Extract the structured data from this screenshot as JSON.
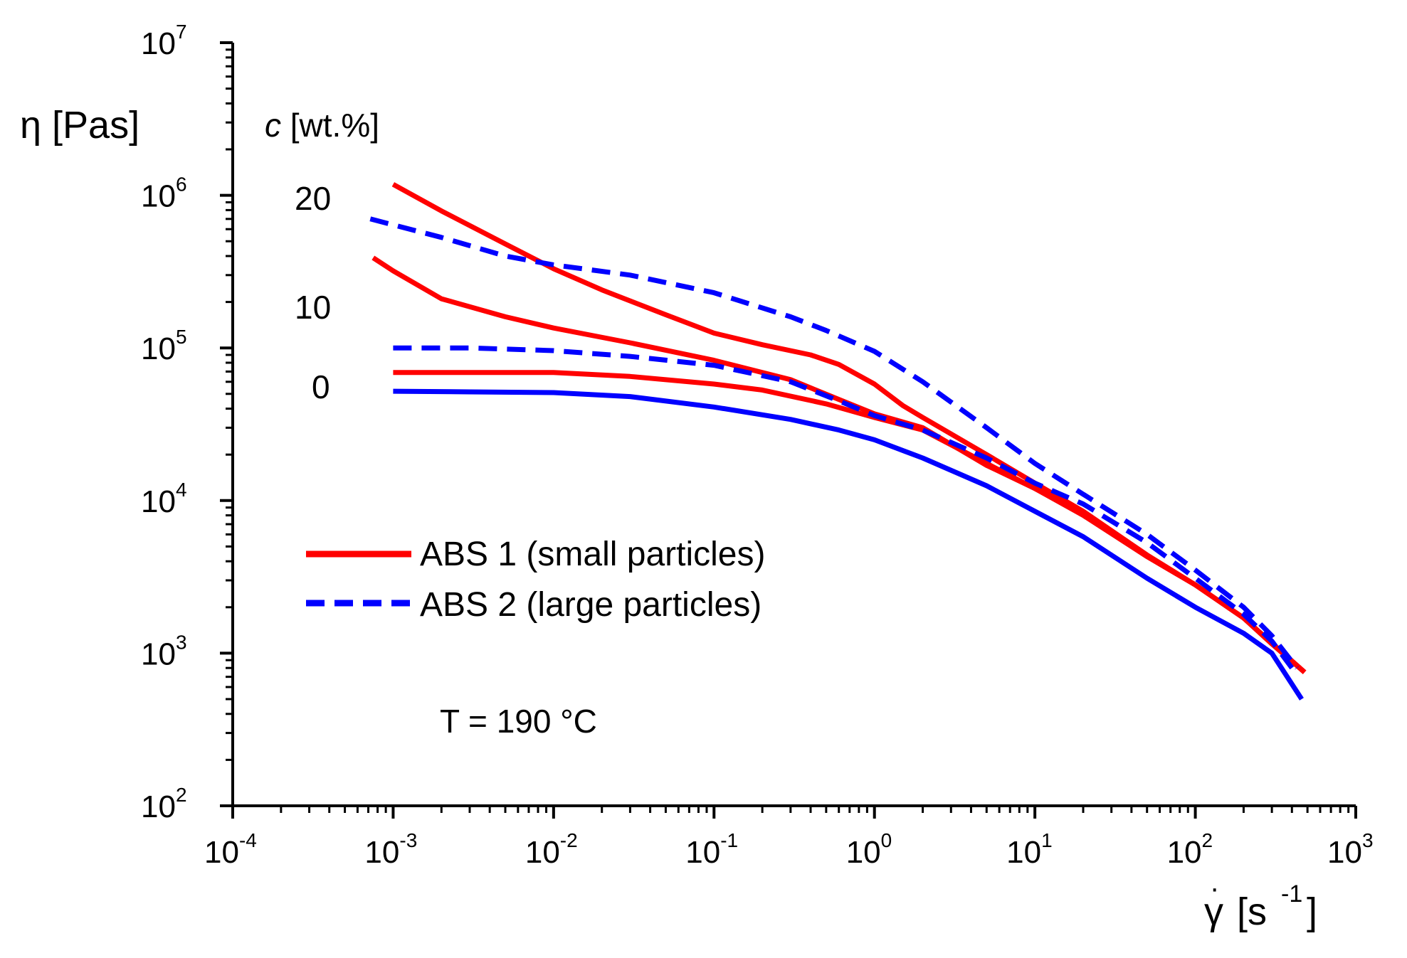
{
  "chart_data": {
    "type": "line",
    "title": "",
    "xlabel": {
      "symbol": "γ",
      "unit_open": "[s",
      "unit_exp": "-1",
      "unit_close": "]"
    },
    "ylabel": "η [Pas]",
    "xscale": "log",
    "yscale": "log",
    "xlim": [
      0.0001,
      1000
    ],
    "ylim": [
      100,
      10000000
    ],
    "xticks": [
      {
        "base": "10",
        "exp": "-4",
        "value": 0.0001
      },
      {
        "base": "10",
        "exp": "-3",
        "value": 0.001
      },
      {
        "base": "10",
        "exp": "-2",
        "value": 0.01
      },
      {
        "base": "10",
        "exp": "-1",
        "value": 0.1
      },
      {
        "base": "10",
        "exp": "0",
        "value": 1
      },
      {
        "base": "10",
        "exp": "1",
        "value": 10
      },
      {
        "base": "10",
        "exp": "2",
        "value": 100
      },
      {
        "base": "10",
        "exp": "3",
        "value": 1000
      }
    ],
    "yticks": [
      {
        "base": "10",
        "exp": "2",
        "value": 100
      },
      {
        "base": "10",
        "exp": "3",
        "value": 1000
      },
      {
        "base": "10",
        "exp": "4",
        "value": 10000
      },
      {
        "base": "10",
        "exp": "5",
        "value": 100000
      },
      {
        "base": "10",
        "exp": "6",
        "value": 1000000
      },
      {
        "base": "10",
        "exp": "7",
        "value": 10000000
      }
    ],
    "grid": false,
    "legend": {
      "placement": "center-left",
      "entries": [
        {
          "label": "ABS 1 (small particles)",
          "color": "#ff0000",
          "dash": "solid"
        },
        {
          "label": "ABS 2 (large particles)",
          "color": "#0000ff",
          "dash": "dashed"
        }
      ]
    },
    "annotations": {
      "conc_title_italic": "c",
      "conc_title_rest": " [wt.%]",
      "conc_labels": [
        "20",
        "10",
        "0"
      ],
      "temperature": "T = 190 °C"
    },
    "series": [
      {
        "group": "ABS 1 (small particles)",
        "c": "0",
        "color": "#0000ff",
        "dash": "solid",
        "points": [
          [
            0.001,
            52000
          ],
          [
            0.003,
            51500
          ],
          [
            0.01,
            51000
          ],
          [
            0.03,
            48000
          ],
          [
            0.1,
            41000
          ],
          [
            0.3,
            34000
          ],
          [
            0.6,
            29000
          ],
          [
            1,
            25000
          ],
          [
            2,
            19000
          ],
          [
            5,
            12500
          ],
          [
            10,
            8500
          ],
          [
            20,
            5800
          ],
          [
            50,
            3100
          ],
          [
            100,
            2000
          ],
          [
            200,
            1350
          ],
          [
            300,
            1000
          ],
          [
            460,
            500
          ]
        ]
      },
      {
        "group": "ABS 1 (small particles)",
        "c": "10",
        "color": "#ff0000",
        "dash": "solid",
        "points": [
          [
            0.001,
            69000
          ],
          [
            0.003,
            69000
          ],
          [
            0.01,
            69000
          ],
          [
            0.03,
            65000
          ],
          [
            0.1,
            58000
          ],
          [
            0.2,
            53000
          ],
          [
            0.5,
            43000
          ],
          [
            1,
            35000
          ],
          [
            2,
            29000
          ],
          [
            5,
            17500
          ],
          [
            10,
            12000
          ],
          [
            20,
            8000
          ],
          [
            50,
            4300
          ],
          [
            100,
            2800
          ],
          [
            200,
            1700
          ],
          [
            300,
            1150
          ],
          [
            480,
            750
          ]
        ]
      },
      {
        "group": "ABS 1 (small particles)",
        "c": "20",
        "color": "#ff0000",
        "dash": "solid",
        "points": [
          [
            0.00075,
            390000
          ],
          [
            0.001,
            320000
          ],
          [
            0.002,
            210000
          ],
          [
            0.005,
            160000
          ],
          [
            0.01,
            135000
          ],
          [
            0.03,
            108000
          ],
          [
            0.1,
            83000
          ],
          [
            0.3,
            62000
          ],
          [
            0.6,
            46000
          ],
          [
            1,
            37000
          ],
          [
            2,
            30000
          ],
          [
            5,
            17000
          ],
          [
            10,
            12000
          ],
          [
            20,
            8100
          ],
          [
            50,
            4300
          ],
          [
            100,
            2800
          ],
          [
            200,
            1700
          ],
          [
            480,
            750
          ]
        ]
      },
      {
        "group": "ABS 1 (small particles)",
        "c": "20",
        "color": "#ff0000",
        "dash": "solid",
        "points": [
          [
            0.001,
            1180000
          ],
          [
            0.002,
            790000
          ],
          [
            0.005,
            480000
          ],
          [
            0.01,
            330000
          ],
          [
            0.02,
            240000
          ],
          [
            0.05,
            165000
          ],
          [
            0.1,
            125000
          ],
          [
            0.2,
            105000
          ],
          [
            0.4,
            90000
          ],
          [
            0.6,
            78000
          ],
          [
            1,
            58000
          ],
          [
            1.5,
            42000
          ],
          [
            2,
            35000
          ],
          [
            5,
            20000
          ],
          [
            10,
            13000
          ],
          [
            20,
            8500
          ],
          [
            50,
            4400
          ],
          [
            100,
            2800
          ],
          [
            200,
            1700
          ],
          [
            480,
            750
          ]
        ]
      },
      {
        "group": "ABS 2 (large particles)",
        "c": "10",
        "color": "#0000ff",
        "dash": "dashed",
        "points": [
          [
            0.001,
            100000
          ],
          [
            0.003,
            100000
          ],
          [
            0.01,
            96000
          ],
          [
            0.03,
            88000
          ],
          [
            0.1,
            77000
          ],
          [
            0.3,
            60000
          ],
          [
            0.6,
            45000
          ],
          [
            1,
            36000
          ],
          [
            2,
            29000
          ],
          [
            5,
            19000
          ],
          [
            10,
            13000
          ],
          [
            20,
            9500
          ],
          [
            50,
            5300
          ],
          [
            100,
            3100
          ],
          [
            200,
            1800
          ],
          [
            300,
            1200
          ],
          [
            400,
            800
          ]
        ]
      },
      {
        "group": "ABS 2 (large particles)",
        "c": "20",
        "color": "#0000ff",
        "dash": "dashed",
        "points": [
          [
            0.00072,
            700000
          ],
          [
            0.001,
            640000
          ],
          [
            0.002,
            530000
          ],
          [
            0.005,
            400000
          ],
          [
            0.01,
            350000
          ],
          [
            0.03,
            300000
          ],
          [
            0.1,
            230000
          ],
          [
            0.3,
            160000
          ],
          [
            0.5,
            130000
          ],
          [
            1,
            95000
          ],
          [
            2,
            60000
          ],
          [
            5,
            30000
          ],
          [
            10,
            17500
          ],
          [
            20,
            11000
          ],
          [
            50,
            6000
          ],
          [
            100,
            3500
          ],
          [
            200,
            2000
          ],
          [
            300,
            1300
          ],
          [
            430,
            800
          ]
        ]
      }
    ]
  }
}
